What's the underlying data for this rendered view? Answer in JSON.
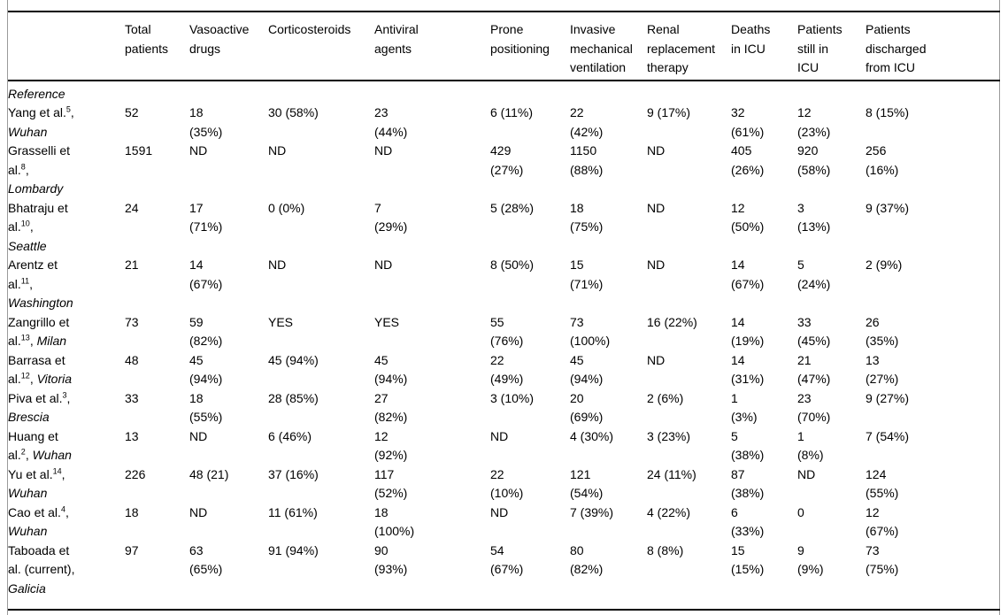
{
  "table": {
    "section_label": "Reference",
    "columns": [
      "",
      "Total\npatients",
      "Vasoactive\ndrugs",
      "Corticosteroids",
      "Antiviral\nagents",
      "Prone\npositioning",
      "Invasive\nmechanical\nventilation",
      "Renal\nreplacement\ntherapy",
      "Deaths\nin ICU",
      "Patients\nstill in\nICU",
      "Patients\ndischarged\nfrom ICU"
    ],
    "rows": [
      {
        "reference": [
          [
            [
              "n",
              "Yang et al."
            ],
            [
              "s",
              "5"
            ],
            [
              "n",
              ","
            ]
          ],
          [
            [
              "i",
              "Wuhan"
            ]
          ]
        ],
        "values": [
          "52",
          "18\n(35%)",
          "30 (58%)",
          "23\n(44%)",
          "6 (11%)",
          "22\n(42%)",
          "9 (17%)",
          "32\n(61%)",
          "12\n(23%)",
          "8 (15%)"
        ]
      },
      {
        "reference": [
          [
            [
              "n",
              "Grasselli et"
            ]
          ],
          [
            [
              "n",
              "al."
            ],
            [
              "s",
              "8"
            ],
            [
              "n",
              ","
            ]
          ],
          [
            [
              "i",
              "Lombardy"
            ]
          ]
        ],
        "values": [
          "1591",
          "ND",
          "ND",
          "ND",
          "429\n(27%)",
          "1150\n(88%)",
          "ND",
          "405\n(26%)",
          "920\n(58%)",
          "256\n(16%)"
        ]
      },
      {
        "reference": [
          [
            [
              "n",
              "Bhatraju et"
            ]
          ],
          [
            [
              "n",
              "al."
            ],
            [
              "s",
              "10"
            ],
            [
              "n",
              ","
            ]
          ],
          [
            [
              "i",
              "Seattle"
            ]
          ]
        ],
        "values": [
          "24",
          "17\n(71%)",
          "0 (0%)",
          "7\n(29%)",
          "5 (28%)",
          "18\n(75%)",
          "ND",
          "12\n(50%)",
          "3\n(13%)",
          "9 (37%)"
        ]
      },
      {
        "reference": [
          [
            [
              "n",
              "Arentz et"
            ]
          ],
          [
            [
              "n",
              "al."
            ],
            [
              "s",
              "11"
            ],
            [
              "n",
              ","
            ]
          ],
          [
            [
              "i",
              "Washington"
            ]
          ]
        ],
        "values": [
          "21",
          "14\n(67%)",
          "ND",
          "ND",
          "8 (50%)",
          "15\n(71%)",
          "ND",
          "14\n(67%)",
          "5\n(24%)",
          "2 (9%)"
        ]
      },
      {
        "reference": [
          [
            [
              "n",
              "Zangrillo et"
            ]
          ],
          [
            [
              "n",
              "al."
            ],
            [
              "s",
              "13"
            ],
            [
              "n",
              ", "
            ],
            [
              "i",
              "Milan"
            ]
          ]
        ],
        "values": [
          "73",
          "59\n(82%)",
          "YES",
          "YES",
          "55\n(76%)",
          "73\n(100%)",
          "16 (22%)",
          "14\n(19%)",
          "33\n(45%)",
          "26\n(35%)"
        ]
      },
      {
        "reference": [
          [
            [
              "n",
              "Barrasa et"
            ]
          ],
          [
            [
              "n",
              "al."
            ],
            [
              "s",
              "12"
            ],
            [
              "n",
              ", "
            ],
            [
              "i",
              "Vitoria"
            ]
          ]
        ],
        "values": [
          "48",
          "45\n(94%)",
          "45 (94%)",
          "45\n(94%)",
          "22\n(49%)",
          "45\n(94%)",
          "ND",
          "14\n(31%)",
          "21\n(47%)",
          "13\n(27%)"
        ]
      },
      {
        "reference": [
          [
            [
              "n",
              "Piva et al."
            ],
            [
              "s",
              "3"
            ],
            [
              "n",
              ","
            ]
          ],
          [
            [
              "i",
              "Brescia"
            ]
          ]
        ],
        "values": [
          "33",
          "18\n(55%)",
          "28 (85%)",
          "27\n(82%)",
          "3 (10%)",
          "20\n(69%)",
          "2 (6%)",
          "1\n(3%)",
          "23\n(70%)",
          "9 (27%)"
        ]
      },
      {
        "reference": [
          [
            [
              "n",
              "Huang et"
            ]
          ],
          [
            [
              "n",
              "al."
            ],
            [
              "s",
              "2"
            ],
            [
              "n",
              ", "
            ],
            [
              "i",
              "Wuhan"
            ]
          ]
        ],
        "values": [
          "13",
          "ND",
          "6 (46%)",
          "12\n(92%)",
          "ND",
          "4 (30%)",
          "3 (23%)",
          "5\n(38%)",
          "1\n(8%)",
          "7 (54%)"
        ]
      },
      {
        "reference": [
          [
            [
              "n",
              "Yu et al."
            ],
            [
              "s",
              "14"
            ],
            [
              "n",
              ","
            ]
          ],
          [
            [
              "i",
              "Wuhan"
            ]
          ]
        ],
        "values": [
          "226",
          "48 (21)",
          "37 (16%)",
          "117\n(52%)",
          "22\n(10%)",
          "121\n(54%)",
          "24 (11%)",
          "87\n(38%)",
          "ND",
          "124\n(55%)"
        ]
      },
      {
        "reference": [
          [
            [
              "n",
              "Cao et al."
            ],
            [
              "s",
              "4"
            ],
            [
              "n",
              ","
            ]
          ],
          [
            [
              "i",
              "Wuhan"
            ]
          ]
        ],
        "values": [
          "18",
          "ND",
          "11 (61%)",
          "18\n(100%)",
          "ND",
          "7 (39%)",
          "4 (22%)",
          "6\n(33%)",
          "0",
          "12\n(67%)"
        ]
      },
      {
        "reference": [
          [
            [
              "n",
              "Taboada et"
            ]
          ],
          [
            [
              "n",
              "al. (current),"
            ]
          ],
          [
            [
              "i",
              "Galicia"
            ]
          ]
        ],
        "values": [
          "97",
          "63\n(65%)",
          "91 (94%)",
          "90\n(93%)",
          "54\n(67%)",
          "80\n(82%)",
          "8 (8%)",
          "15\n(15%)",
          "9\n(9%)",
          "73\n(75%)"
        ]
      }
    ]
  }
}
